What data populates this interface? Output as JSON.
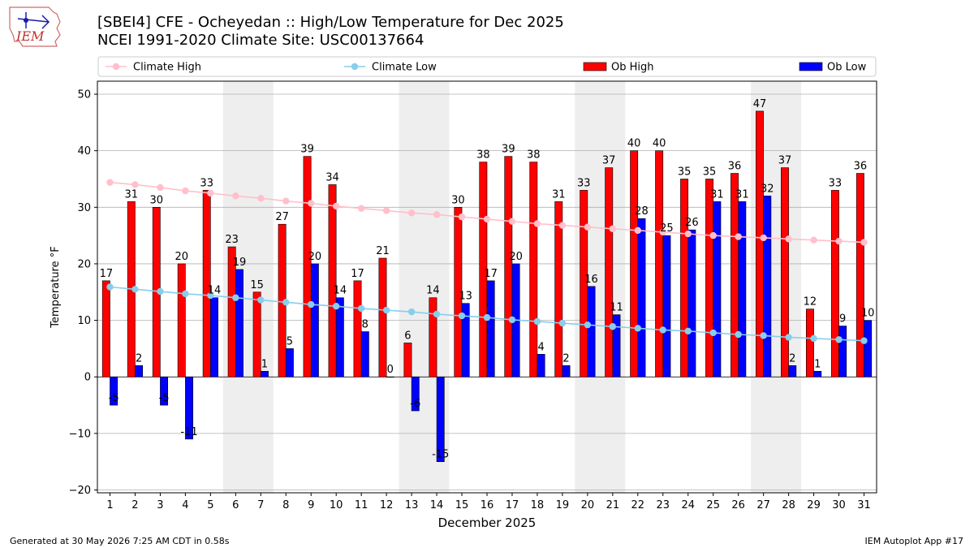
{
  "title_line1": "[SBEI4] CFE - Ocheyedan :: High/Low Temperature for Dec 2025",
  "title_line2": "NCEI 1991-2020 Climate Site: USC00137664",
  "logo_text": "IEM",
  "footer_left": "Generated at 30 May 2026 7:25 AM CDT in 0.58s",
  "footer_right": "IEM Autoplot App #17",
  "colors": {
    "ob_high": "#ff0000",
    "ob_low": "#0000ff",
    "climate_high": "#ffc0cb",
    "climate_low": "#87ceeb",
    "weekend_shade": "#eeeeee",
    "grid": "#b0b0b0"
  },
  "chart_data": {
    "type": "bar",
    "xlabel": "December 2025",
    "ylabel": "Temperature °F",
    "ylim": [
      -20.5,
      52.3
    ],
    "yticks": [
      -20,
      -10,
      0,
      10,
      20,
      30,
      40,
      50
    ],
    "grid": "horizontal",
    "legend": "top, above plot",
    "categories": [
      1,
      2,
      3,
      4,
      5,
      6,
      7,
      8,
      9,
      10,
      11,
      12,
      13,
      14,
      15,
      16,
      17,
      18,
      19,
      20,
      21,
      22,
      23,
      24,
      25,
      26,
      27,
      28,
      29,
      30,
      31
    ],
    "shaded_days": [
      [
        6,
        7
      ],
      [
        13,
        14
      ],
      [
        20,
        21
      ],
      [
        27,
        28
      ]
    ],
    "series": [
      {
        "name": "Climate High",
        "kind": "line",
        "values": [
          34.4,
          34.0,
          33.5,
          32.9,
          32.5,
          32.0,
          31.6,
          31.1,
          30.7,
          30.2,
          29.8,
          29.4,
          29.0,
          28.7,
          28.3,
          27.9,
          27.5,
          27.1,
          26.8,
          26.5,
          26.2,
          25.9,
          25.6,
          25.3,
          25.0,
          24.8,
          24.6,
          24.4,
          24.2,
          24.0,
          23.8
        ]
      },
      {
        "name": "Climate Low",
        "kind": "line",
        "values": [
          15.9,
          15.5,
          15.1,
          14.7,
          14.4,
          14.0,
          13.6,
          13.2,
          12.8,
          12.5,
          12.1,
          11.8,
          11.5,
          11.1,
          10.8,
          10.5,
          10.1,
          9.8,
          9.5,
          9.2,
          8.9,
          8.6,
          8.3,
          8.1,
          7.8,
          7.5,
          7.3,
          7.0,
          6.8,
          6.6,
          6.4
        ]
      },
      {
        "name": "Ob High",
        "kind": "bar",
        "values": [
          17,
          31,
          30,
          20,
          33,
          23,
          15,
          27,
          39,
          34,
          17,
          21,
          6,
          14,
          30,
          38,
          39,
          38,
          31,
          33,
          37,
          40,
          40,
          35,
          35,
          36,
          47,
          37,
          12,
          33,
          36
        ]
      },
      {
        "name": "Ob Low",
        "kind": "bar",
        "values": [
          -5,
          2,
          -5,
          -11,
          14,
          19,
          1,
          5,
          20,
          14,
          8,
          0,
          -6,
          -15,
          13,
          17,
          20,
          4,
          2,
          16,
          11,
          28,
          25,
          26,
          31,
          31,
          32,
          2,
          1,
          9,
          10
        ]
      }
    ]
  }
}
